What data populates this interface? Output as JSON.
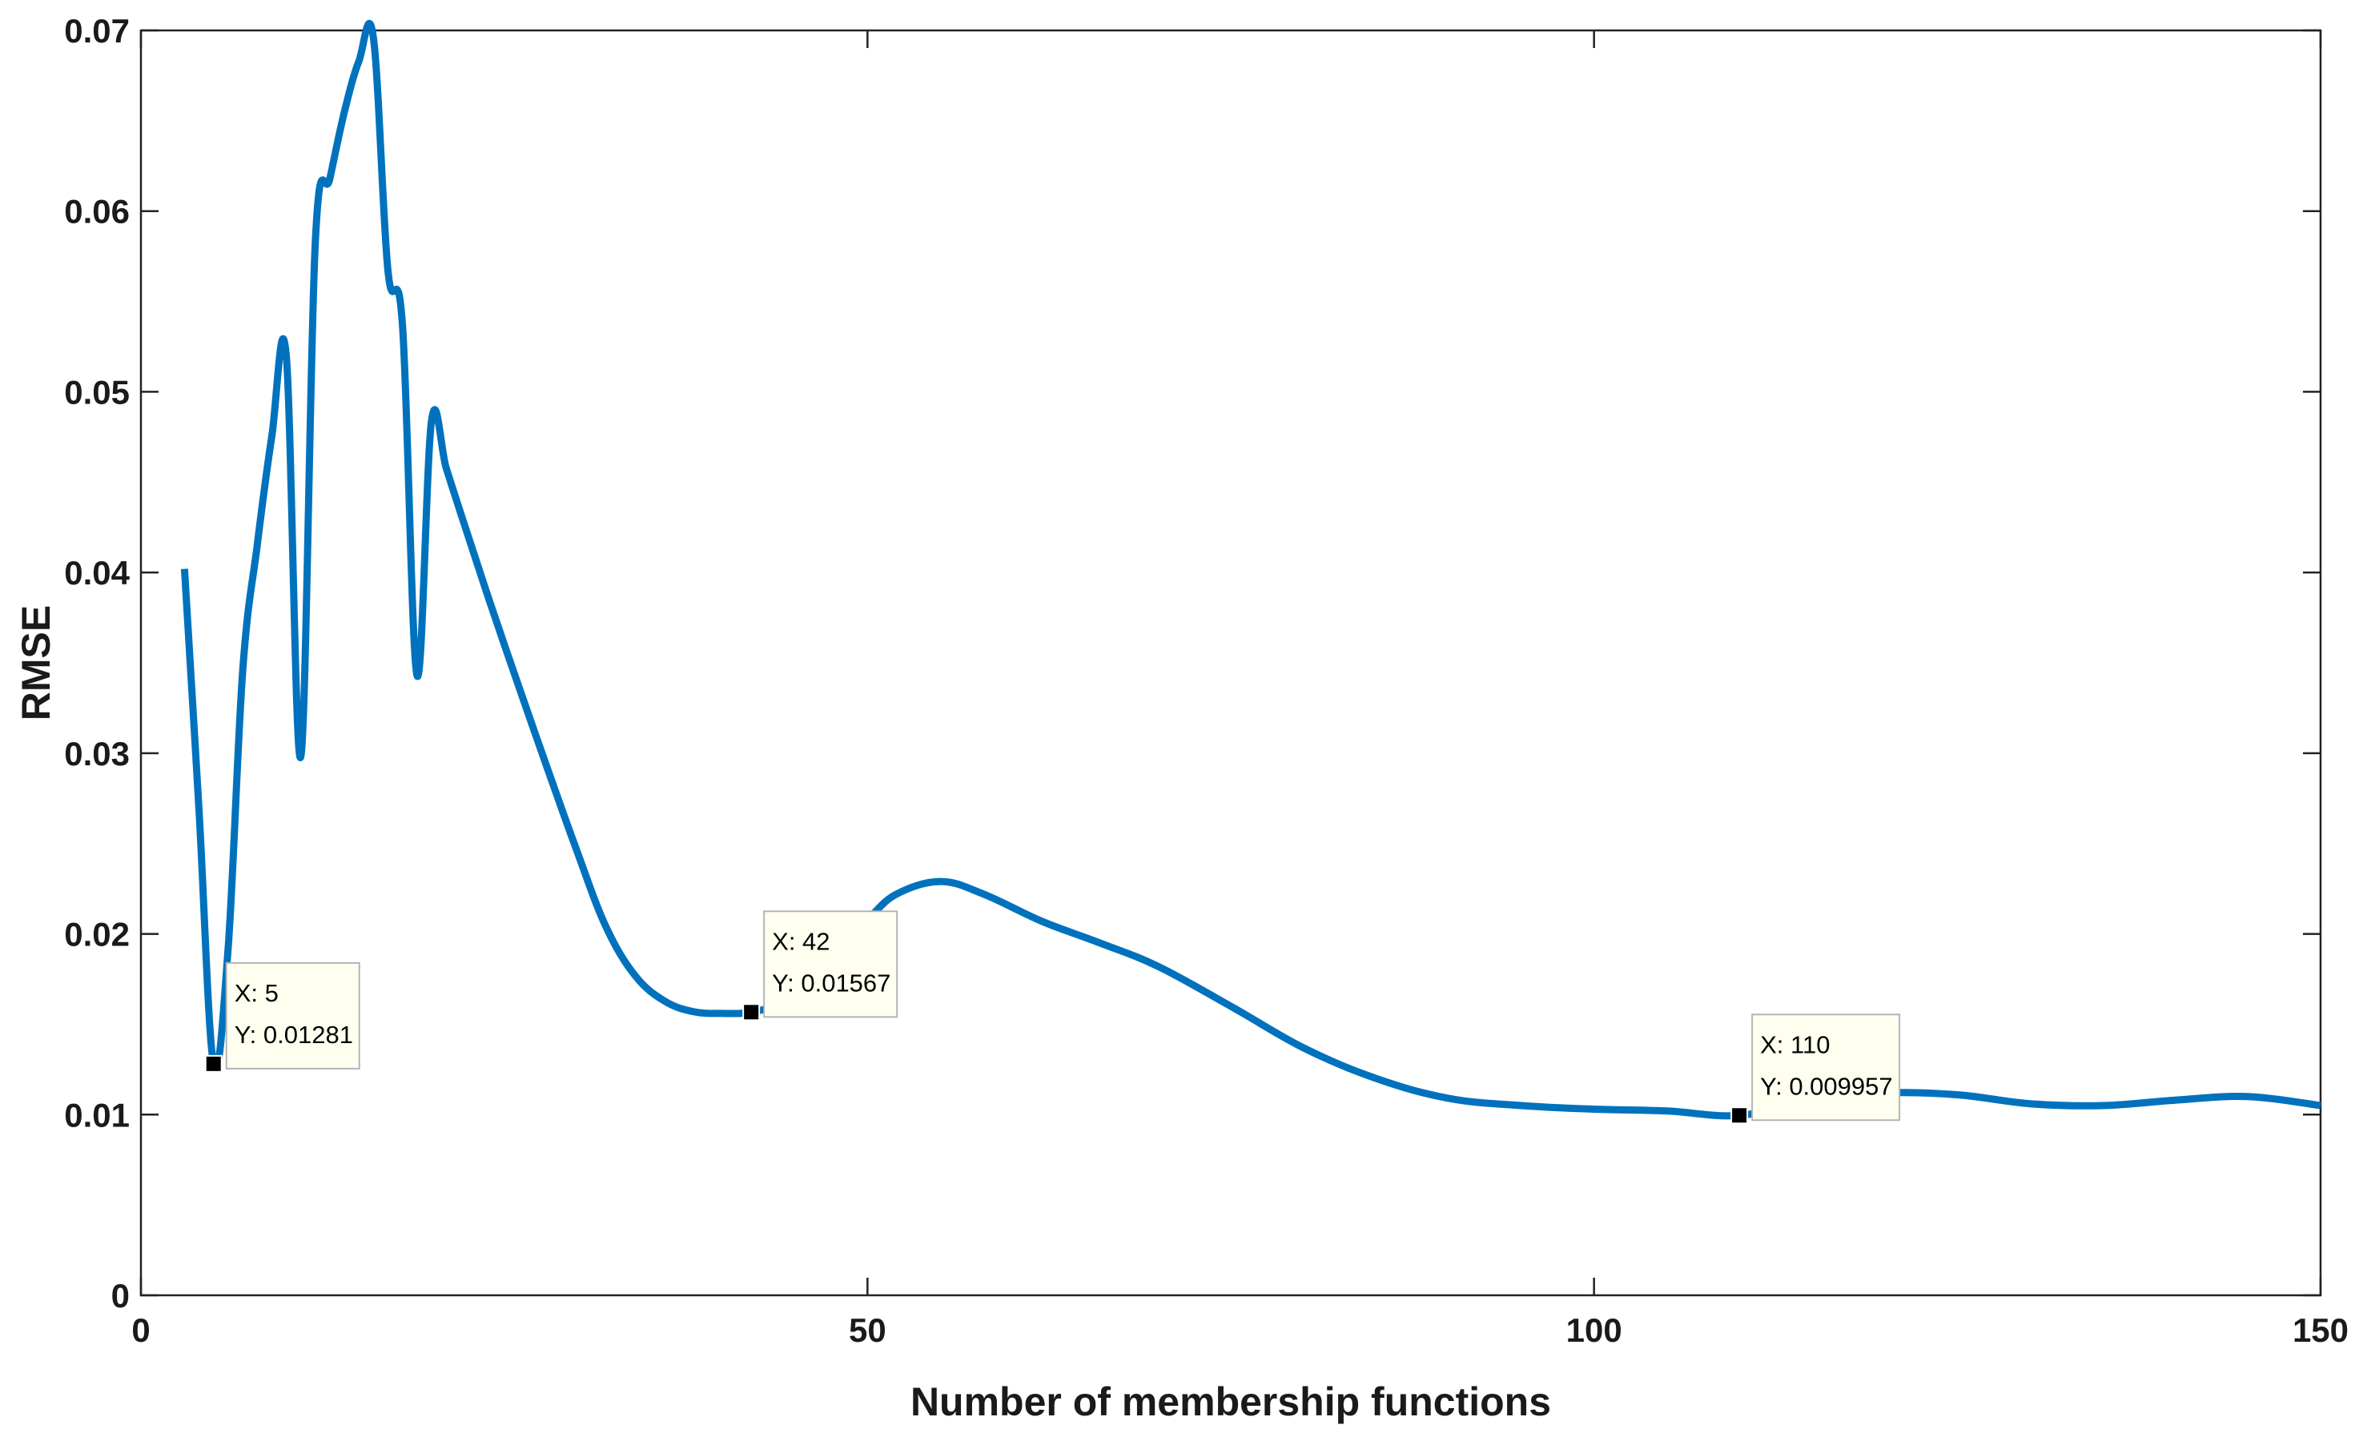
{
  "chart_data": {
    "type": "line",
    "title": "",
    "xlabel": "Number of membership functions",
    "ylabel": "RMSE",
    "xlim": [
      0,
      150
    ],
    "ylim": [
      0,
      0.07
    ],
    "xticks": [
      0,
      50,
      100,
      150
    ],
    "xtick_labels": [
      "0",
      "50",
      "100",
      "150"
    ],
    "yticks": [
      0,
      0.01,
      0.02,
      0.03,
      0.04,
      0.05,
      0.06,
      0.07
    ],
    "ytick_labels": [
      "0",
      "0.01",
      "0.02",
      "0.03",
      "0.04",
      "0.05",
      "0.06",
      "0.07"
    ],
    "grid": false,
    "line_color": "#0072BD",
    "series": [
      {
        "name": "RMSE",
        "x": [
          3,
          4,
          5,
          6,
          7,
          8,
          9,
          10,
          11,
          12,
          13,
          14,
          15,
          16,
          17,
          18,
          19,
          20,
          21,
          22,
          24,
          26,
          28,
          30,
          32,
          34,
          36,
          38,
          40,
          42,
          44,
          46,
          48,
          50,
          52,
          55,
          58,
          62,
          66,
          70,
          75,
          80,
          85,
          90,
          95,
          100,
          105,
          110,
          115,
          120,
          125,
          130,
          135,
          140,
          145,
          150
        ],
        "y": [
          0.0402,
          0.0268,
          0.01281,
          0.0192,
          0.0345,
          0.0415,
          0.0475,
          0.052,
          0.0298,
          0.0583,
          0.0618,
          0.0655,
          0.0683,
          0.0696,
          0.0567,
          0.0537,
          0.0343,
          0.0484,
          0.0458,
          0.0433,
          0.0384,
          0.0337,
          0.0291,
          0.0246,
          0.0204,
          0.0177,
          0.0163,
          0.0157,
          0.0156,
          0.01567,
          0.0162,
          0.0176,
          0.0193,
          0.0208,
          0.0222,
          0.0229,
          0.0222,
          0.0207,
          0.0195,
          0.0182,
          0.016,
          0.0137,
          0.012,
          0.0109,
          0.0105,
          0.0103,
          0.0102,
          0.009957,
          0.0108,
          0.0112,
          0.0111,
          0.0106,
          0.0105,
          0.0108,
          0.011,
          0.0105
        ]
      }
    ],
    "datatips": [
      {
        "x": 5,
        "y": 0.01281,
        "x_label": "X: 5",
        "y_label": "Y: 0.01281"
      },
      {
        "x": 42,
        "y": 0.01567,
        "x_label": "X: 42",
        "y_label": "Y: 0.01567"
      },
      {
        "x": 110,
        "y": 0.009957,
        "x_label": "X: 110",
        "y_label": "Y: 0.009957"
      }
    ]
  }
}
